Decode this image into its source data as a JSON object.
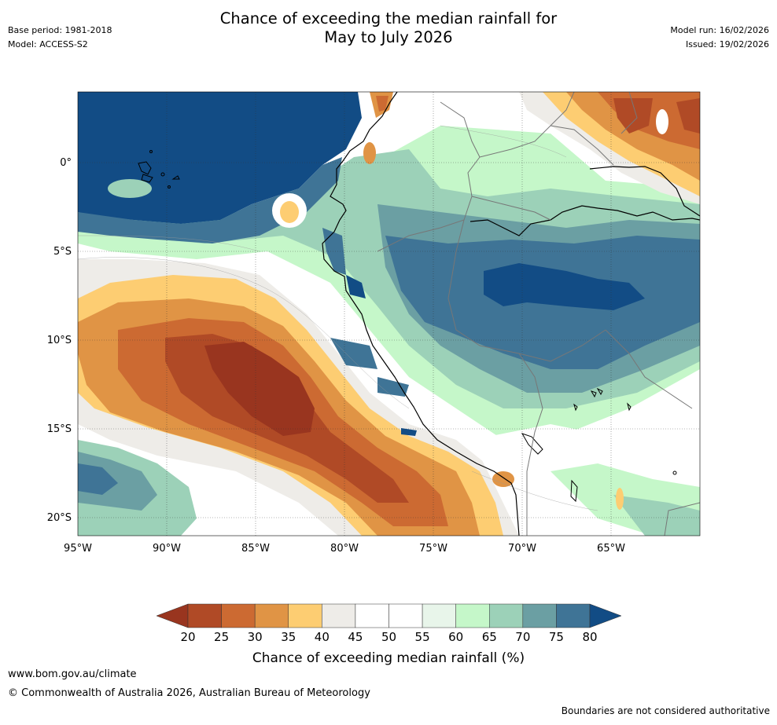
{
  "header": {
    "title_line1": "Chance of exceeding the median rainfall for",
    "title_line2": "May to July 2026",
    "base_period": "Base period: 1981-2018",
    "model": "Model: ACCESS-S2",
    "model_run": "Model run: 16/02/2026",
    "issued": "Issued: 19/02/2026"
  },
  "map": {
    "lon_labels": [
      "95°W",
      "90°W",
      "85°W",
      "80°W",
      "75°W",
      "70°W",
      "65°W"
    ],
    "lat_labels": [
      "0°",
      "5°S",
      "10°S",
      "15°S",
      "20°S"
    ],
    "regions": {
      "north_ocean": "80+",
      "amazon_basin": "70-80",
      "eastern_pacific_dry_core": "20-25",
      "southeast_pacific": "70-75",
      "north_venezuela_colombia": "20-35"
    }
  },
  "colorbar": {
    "ticks": [
      "20",
      "25",
      "30",
      "35",
      "40",
      "45",
      "50",
      "55",
      "60",
      "65",
      "70",
      "75",
      "80"
    ],
    "colors": [
      "#99351f",
      "#b04a26",
      "#cc6a32",
      "#e09445",
      "#fdcd72",
      "#eeece8",
      "#ffffff",
      "#ffffff",
      "#e8f5ea",
      "#c5f7c9",
      "#9cd1b8",
      "#6b9fa3",
      "#3f7496",
      "#124c85"
    ],
    "label": "Chance of exceeding median rainfall (%)"
  },
  "footer": {
    "url": "www.bom.gov.au/climate",
    "copyright": "© Commonwealth of Australia 2026, Australian Bureau of Meteorology",
    "disclaimer": "Boundaries are not considered authoritative"
  }
}
